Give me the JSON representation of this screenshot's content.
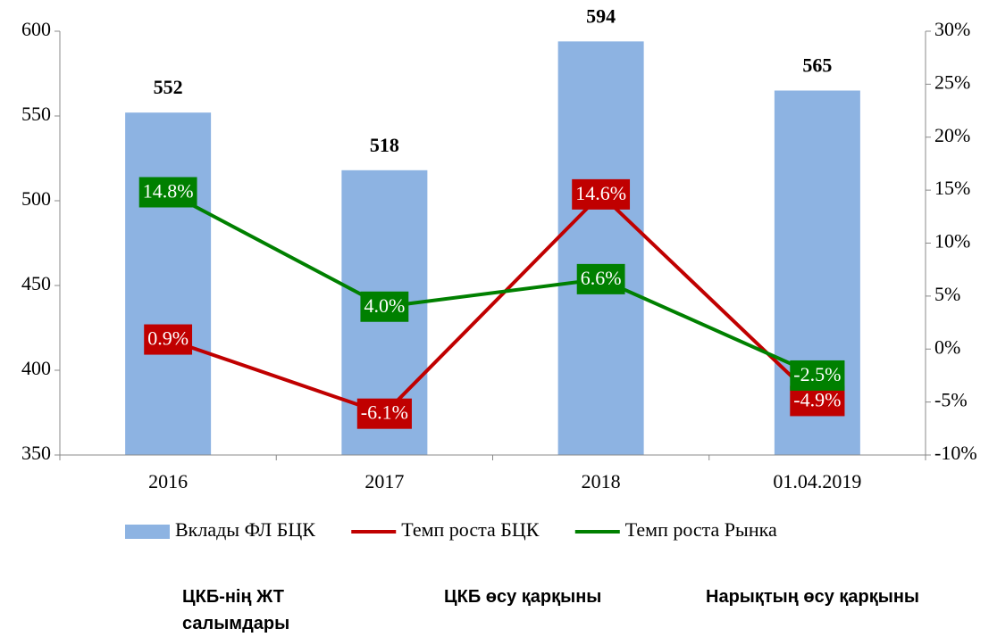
{
  "chart_data": {
    "type": "bar",
    "categories": [
      "2016",
      "2017",
      "2018",
      "01.04.2019"
    ],
    "series": [
      {
        "name": "Вклады ФЛ БЦК",
        "type": "bar",
        "color": "#8db3e2",
        "values": [
          552,
          518,
          594,
          565
        ]
      },
      {
        "name": "Темп роста БЦК",
        "type": "line",
        "axis": "y2",
        "color": "#c00000",
        "values": [
          0.9,
          -6.1,
          14.6,
          -4.9
        ],
        "value_labels": [
          "0.9%",
          "-6.1%",
          "14.6%",
          "-4.9%"
        ]
      },
      {
        "name": "Темп роста Рынка",
        "type": "line",
        "axis": "y2",
        "color": "#008000",
        "values": [
          14.8,
          4.0,
          6.6,
          -2.5
        ],
        "value_labels": [
          "14.8%",
          "4.0%",
          "6.6%",
          "-2.5%"
        ]
      }
    ],
    "ylim": [
      350,
      600
    ],
    "yticks": [
      350,
      400,
      450,
      500,
      550,
      600
    ],
    "y2lim": [
      -10,
      30
    ],
    "y2ticks": [
      {
        "value": -10,
        "label": "-10%"
      },
      {
        "value": -5,
        "label": "-5%"
      },
      {
        "value": 0,
        "label": "0%"
      },
      {
        "value": 5,
        "label": "5%"
      },
      {
        "value": 10,
        "label": "10%"
      },
      {
        "value": 15,
        "label": "15%"
      },
      {
        "value": 20,
        "label": "20%"
      },
      {
        "value": 25,
        "label": "25%"
      },
      {
        "value": 30,
        "label": "30%"
      }
    ],
    "legend": "bottom",
    "annotations": [
      "ЦКБ-нің ЖТ салымдары",
      "ЦКБ өсу қарқыны",
      "Нарықтың өсу қарқыны"
    ]
  }
}
